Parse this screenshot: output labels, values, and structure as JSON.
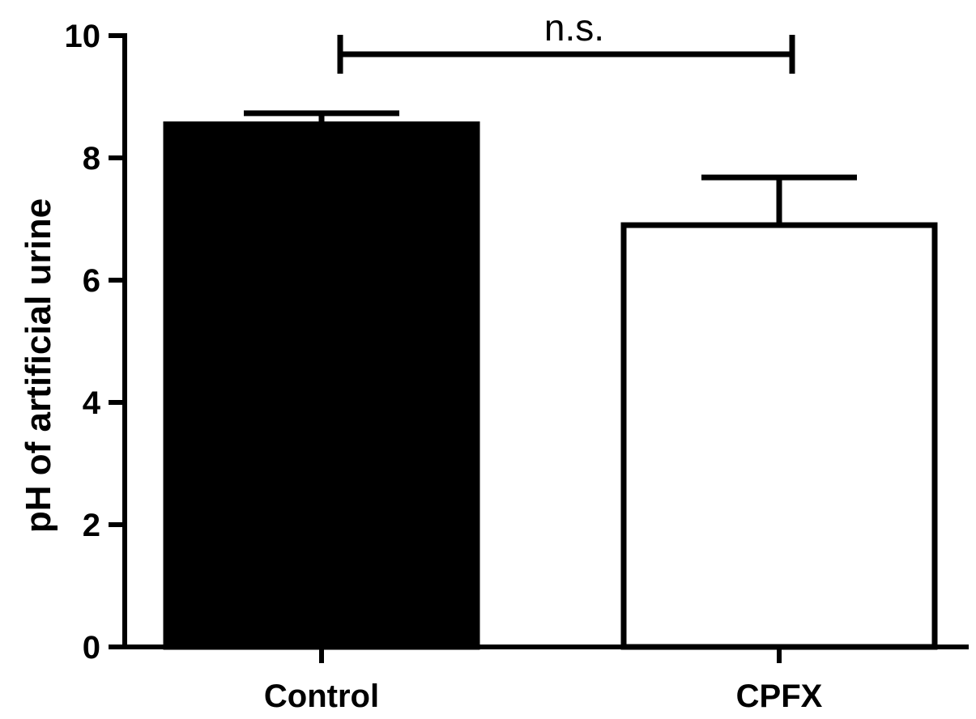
{
  "chart_data": {
    "type": "bar",
    "title": "",
    "xlabel": "",
    "ylabel": "pH of artificial urine",
    "ylim": [
      0,
      10
    ],
    "yticks": [
      0,
      2,
      4,
      6,
      8,
      10
    ],
    "grid": false,
    "categories": [
      "Control",
      "CPFX"
    ],
    "values": [
      8.55,
      6.9
    ],
    "error_upper": [
      0.18,
      0.78
    ],
    "bar_fill": [
      "#000000",
      "#ffffff"
    ],
    "bar_edge": "#000000",
    "annotations": [
      {
        "text": "n.s.",
        "type": "significance-bracket",
        "between": [
          "Control",
          "CPFX"
        ],
        "y": 10.0
      }
    ]
  },
  "ticks": {
    "y0": "0",
    "y2": "2",
    "y4": "4",
    "y6": "6",
    "y8": "8",
    "y10": "10"
  }
}
